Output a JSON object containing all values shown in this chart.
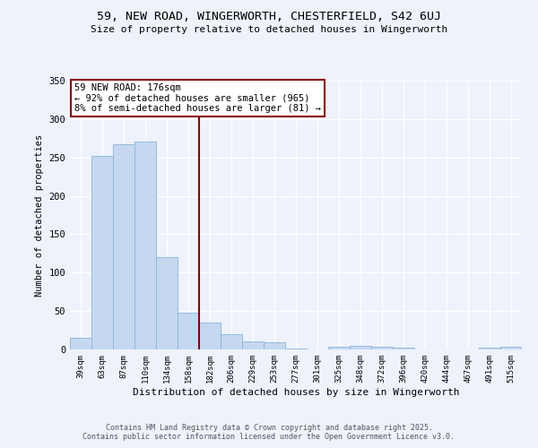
{
  "title_line1": "59, NEW ROAD, WINGERWORTH, CHESTERFIELD, S42 6UJ",
  "title_line2": "Size of property relative to detached houses in Wingerworth",
  "xlabel": "Distribution of detached houses by size in Wingerworth",
  "ylabel": "Number of detached properties",
  "categories": [
    "39sqm",
    "63sqm",
    "87sqm",
    "110sqm",
    "134sqm",
    "158sqm",
    "182sqm",
    "206sqm",
    "229sqm",
    "253sqm",
    "277sqm",
    "301sqm",
    "325sqm",
    "348sqm",
    "372sqm",
    "396sqm",
    "420sqm",
    "444sqm",
    "467sqm",
    "491sqm",
    "515sqm"
  ],
  "values": [
    15,
    252,
    267,
    271,
    120,
    48,
    35,
    20,
    10,
    9,
    1,
    0,
    3,
    5,
    4,
    2,
    0,
    0,
    0,
    2,
    3
  ],
  "bar_color": "#c5d8f0",
  "bar_edge_color": "#8ab4d8",
  "marker_index": 6,
  "marker_line_color": "#8b0000",
  "annotation_text": "59 NEW ROAD: 176sqm\n← 92% of detached houses are smaller (965)\n8% of semi-detached houses are larger (81) →",
  "annotation_box_color": "#ffffff",
  "annotation_box_edge_color": "#8b0000",
  "ylim": [
    0,
    350
  ],
  "yticks": [
    0,
    50,
    100,
    150,
    200,
    250,
    300,
    350
  ],
  "footer_line1": "Contains HM Land Registry data © Crown copyright and database right 2025.",
  "footer_line2": "Contains public sector information licensed under the Open Government Licence v3.0.",
  "bg_color": "#eef2fb",
  "grid_color": "#ffffff"
}
